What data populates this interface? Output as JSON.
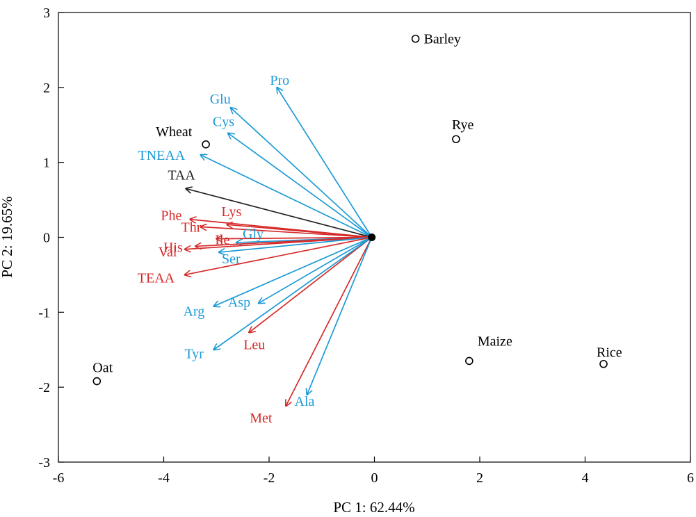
{
  "chart_data": {
    "type": "scatter",
    "subtype": "pca-biplot",
    "xlabel": "PC 1: 62.44%",
    "ylabel": "PC 2: 19.65%",
    "xlim": [
      -6,
      6
    ],
    "ylim": [
      -3,
      3
    ],
    "xticks": [
      -6,
      -4,
      -2,
      0,
      2,
      4,
      6
    ],
    "yticks": [
      -3,
      -2,
      -1,
      0,
      1,
      2,
      3
    ],
    "grid": false,
    "colors": {
      "points": "#000000",
      "total": "#222222",
      "essential": "#d62a2a",
      "nonessential": "#1c9ad6"
    },
    "points": [
      {
        "label": "Barley",
        "x": 0.78,
        "y": 2.65
      },
      {
        "label": "Rye",
        "x": 1.55,
        "y": 1.31
      },
      {
        "label": "Wheat",
        "x": -3.2,
        "y": 1.24
      },
      {
        "label": "Maize",
        "x": 1.8,
        "y": -1.65
      },
      {
        "label": "Rice",
        "x": 4.35,
        "y": -1.69
      },
      {
        "label": "Oat",
        "x": -5.27,
        "y": -1.92
      }
    ],
    "origin": {
      "x": -0.05,
      "y": 0
    },
    "vectors": [
      {
        "label": "Pro",
        "group": "nonessential",
        "x": -1.85,
        "y": 2.0
      },
      {
        "label": "Glu",
        "group": "nonessential",
        "x": -2.73,
        "y": 1.73
      },
      {
        "label": "Cys",
        "group": "nonessential",
        "x": -2.78,
        "y": 1.39
      },
      {
        "label": "TNEAA",
        "group": "nonessential",
        "x": -3.3,
        "y": 1.1
      },
      {
        "label": "TAA",
        "group": "total",
        "x": -3.58,
        "y": 0.65
      },
      {
        "label": "Lys",
        "group": "essential",
        "x": -2.8,
        "y": 0.17
      },
      {
        "label": "Phe",
        "group": "essential",
        "x": -3.5,
        "y": 0.24
      },
      {
        "label": "Thr",
        "group": "essential",
        "x": -3.3,
        "y": 0.14
      },
      {
        "label": "Gly",
        "group": "nonessential",
        "x": -2.62,
        "y": -0.07
      },
      {
        "label": "Ile",
        "group": "essential",
        "x": -3.0,
        "y": -0.02
      },
      {
        "label": "His",
        "group": "essential",
        "x": -3.4,
        "y": -0.12
      },
      {
        "label": "Val",
        "group": "essential",
        "x": -3.6,
        "y": -0.16
      },
      {
        "label": "Ser",
        "group": "nonessential",
        "x": -2.95,
        "y": -0.2
      },
      {
        "label": "TEAA",
        "group": "essential",
        "x": -3.6,
        "y": -0.5
      },
      {
        "label": "Arg",
        "group": "nonessential",
        "x": -3.05,
        "y": -0.92
      },
      {
        "label": "Asp",
        "group": "nonessential",
        "x": -2.2,
        "y": -0.88
      },
      {
        "label": "Leu",
        "group": "essential",
        "x": -2.38,
        "y": -1.27
      },
      {
        "label": "Tyr",
        "group": "nonessential",
        "x": -3.05,
        "y": -1.5
      },
      {
        "label": "Met",
        "group": "essential",
        "x": -1.68,
        "y": -2.25
      },
      {
        "label": "Ala",
        "group": "nonessential",
        "x": -1.28,
        "y": -2.1
      }
    ]
  }
}
